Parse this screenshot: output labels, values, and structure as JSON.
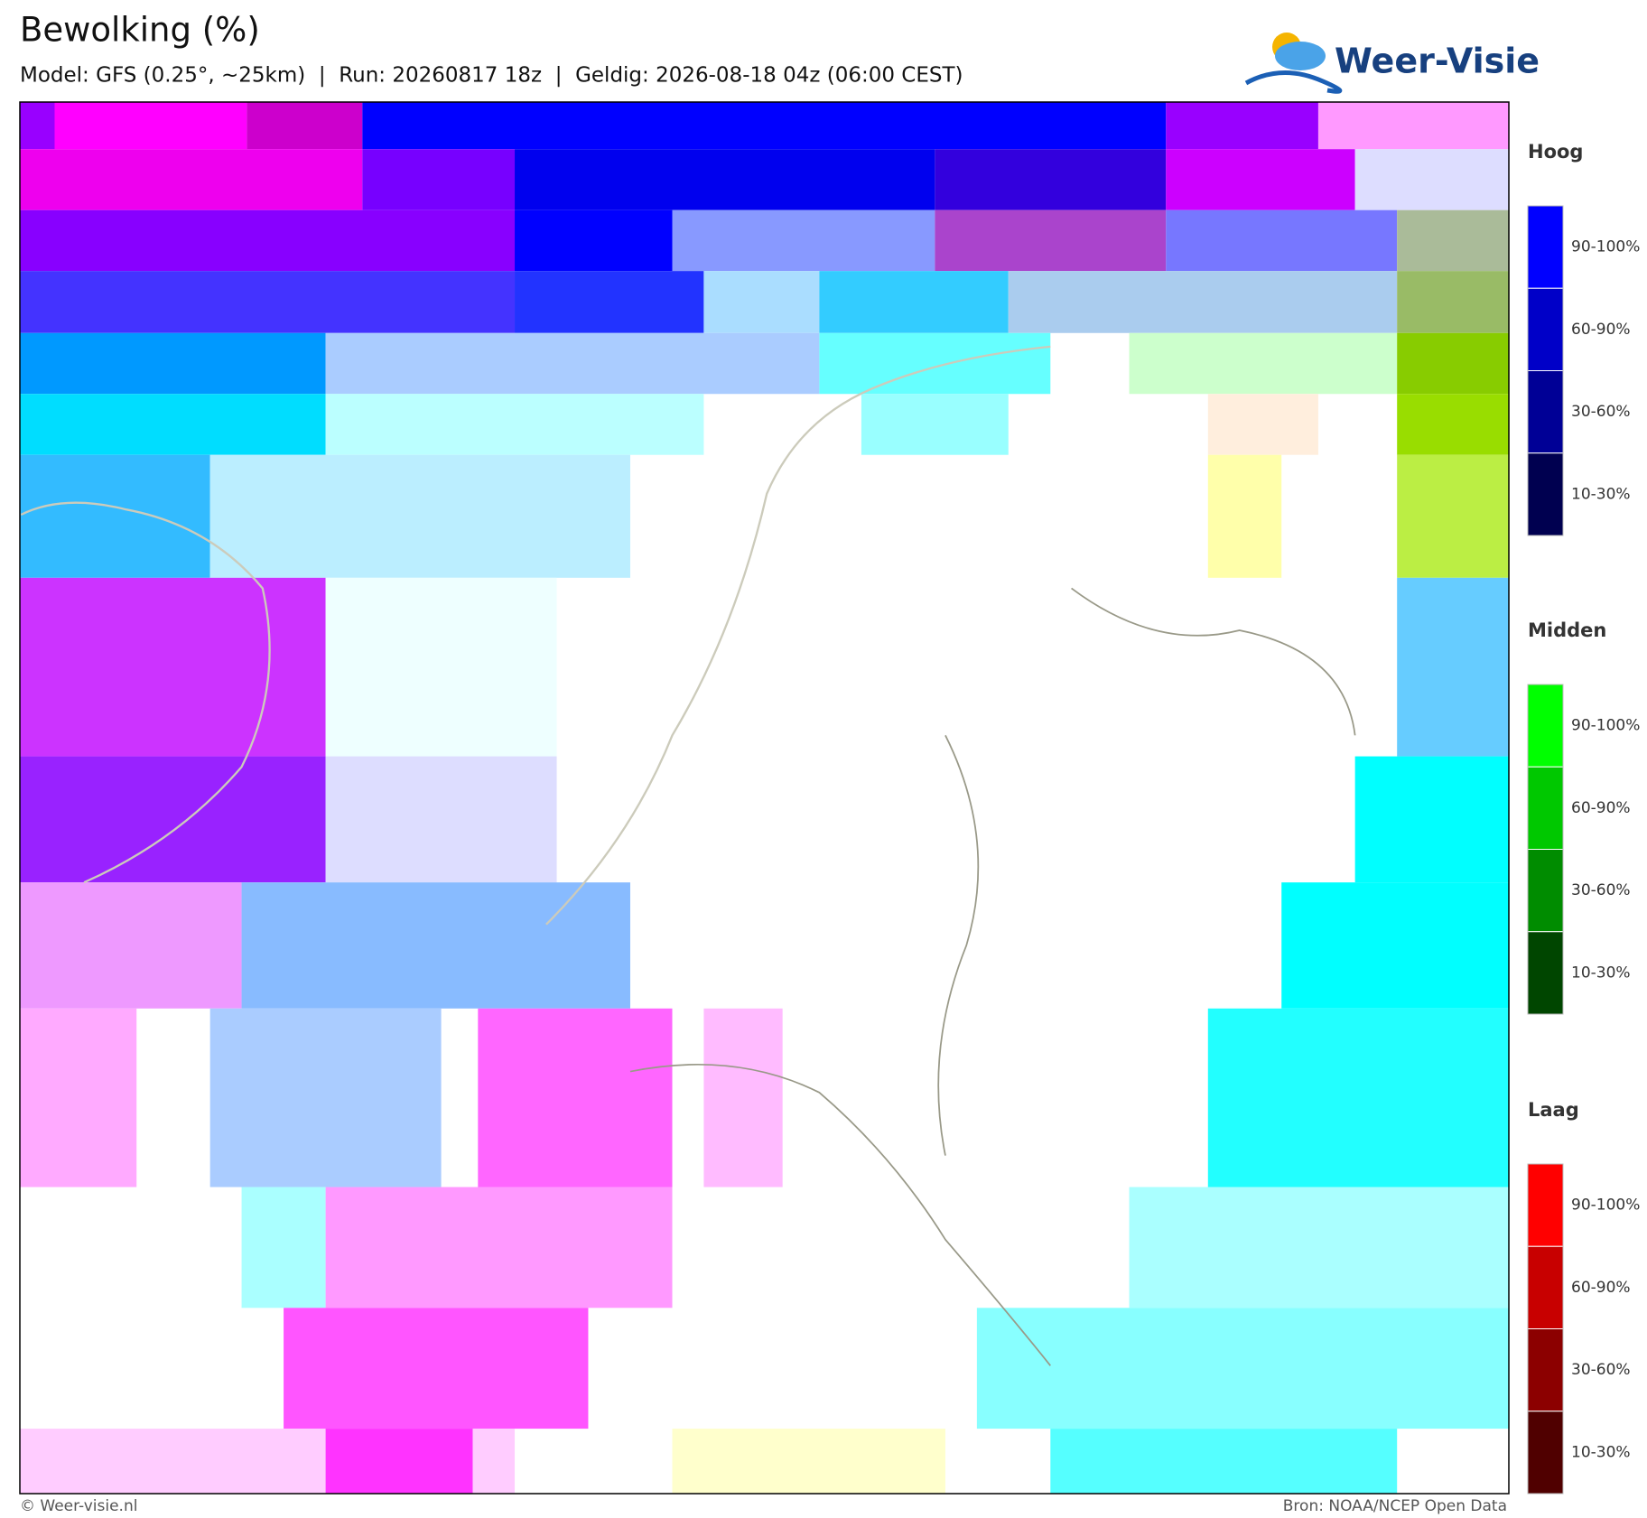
{
  "header": {
    "title": "Bewolking (%)",
    "subtitle": "Model: GFS (0.25°, ~25km)  |  Run: 20260817 18z  |  Geldig: 2026-08-18 04z (06:00 CEST)",
    "logo": "Weer-Visie"
  },
  "legend": [
    {
      "title": "Hoog",
      "entries": [
        "90-100%",
        "60-90%",
        "30-60%",
        "10-30%"
      ]
    },
    {
      "title": "Midden",
      "entries": [
        "90-100%",
        "60-90%",
        "30-60%",
        "10-30%"
      ]
    },
    {
      "title": "Laag",
      "entries": [
        "90-100%",
        "60-90%",
        "30-60%",
        "10-30%"
      ]
    }
  ],
  "footer": {
    "left": "© Weer-visie.nl",
    "right": "Bron: NOAA/NCEP Open Data"
  }
}
